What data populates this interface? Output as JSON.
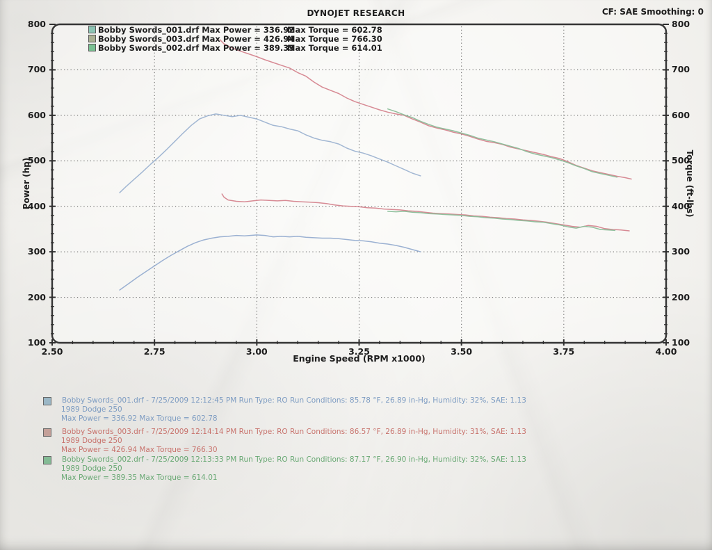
{
  "header": {
    "brand": "DYNOJET RESEARCH",
    "correction": "CF: SAE  Smoothing: 0"
  },
  "top_legend": {
    "rows": [
      {
        "file_power": "Bobby Swords_001.drf Max Power = 336.92",
        "max_torque": "Max Torque = 602.78",
        "chip_color": "#8cc4b4"
      },
      {
        "file_power": "Bobby Swords_003.drf Max Power = 426.94",
        "max_torque": "Max Torque = 766.30",
        "chip_color": "#aab092"
      },
      {
        "file_power": "Bobby Swords_002.drf Max Power = 389.35",
        "max_torque": "Max Torque = 614.01",
        "chip_color": "#79c091"
      }
    ]
  },
  "runs": [
    {
      "chip_color": "#9bb7c6",
      "text_color": "#7d9cc2",
      "line1": "Bobby Swords_001.drf - 7/25/2009 12:12:45 PM  Run Type: RO  Run Conditions: 85.78 °F, 26.89 in-Hg,  Humidity:  32%, SAE: 1.13",
      "line2": "1989 Dodge 250",
      "line3": "Max Power = 336.92  Max Torque = 602.78"
    },
    {
      "chip_color": "#c4a099",
      "text_color": "#c8736d",
      "line1": "Bobby Swords_003.drf - 7/25/2009 12:14:14 PM  Run Type: RO  Run Conditions: 86.57 °F, 26.89 in-Hg,  Humidity:  31%, SAE: 1.13",
      "line2": "1989 Dodge 250",
      "line3": "Max Power = 426.94  Max Torque = 766.30"
    },
    {
      "chip_color": "#84bb95",
      "text_color": "#68a873",
      "line1": "Bobby Swords_002.drf - 7/25/2009 12:13:33 PM  Run Type: RO  Run Conditions: 87.17 °F, 26.90 in-Hg,  Humidity:  32%, SAE: 1.13",
      "line2": "1989 Dodge 250",
      "line3": "Max Power = 389.35  Max Torque = 614.01"
    }
  ],
  "chart_data": {
    "type": "line",
    "title": "DYNOJET RESEARCH",
    "xlabel": "Engine Speed (RPM x1000)",
    "ylabel_left": "Power (hp)",
    "ylabel_right": "Torque (ft-lbs)",
    "xlim": [
      2.5,
      4.0
    ],
    "ylim": [
      100,
      800
    ],
    "x_tick_labels": [
      "2.50",
      "2.75",
      "3.00",
      "3.25",
      "3.50",
      "3.75",
      "4.00"
    ],
    "x_ticks": [
      2.5,
      2.75,
      3.0,
      3.25,
      3.5,
      3.75,
      4.0
    ],
    "y_tick_labels": [
      "100",
      "200",
      "300",
      "400",
      "500",
      "600",
      "700",
      "800"
    ],
    "y_ticks": [
      100,
      200,
      300,
      400,
      500,
      600,
      700,
      800
    ],
    "x_grid": [
      2.75,
      3.0,
      3.25,
      3.5,
      3.75
    ],
    "y_grid": [
      200,
      300,
      400,
      500,
      600,
      700
    ],
    "x_minor_step": 0.05,
    "y_minor_step": 20,
    "grid": "dotted",
    "legend_position": "top-left",
    "series": [
      {
        "name": "Bobby Swords_001.drf torque",
        "run": "001",
        "axis": "torque (ft-lbs, right)",
        "max_value": 602.78,
        "color": "#9db3d1",
        "points": [
          [
            2.665,
            430
          ],
          [
            2.68,
            443
          ],
          [
            2.7,
            459
          ],
          [
            2.72,
            475
          ],
          [
            2.74,
            492
          ],
          [
            2.76,
            508
          ],
          [
            2.78,
            525
          ],
          [
            2.8,
            543
          ],
          [
            2.82,
            561
          ],
          [
            2.84,
            578
          ],
          [
            2.86,
            592
          ],
          [
            2.88,
            599
          ],
          [
            2.9,
            603
          ],
          [
            2.92,
            600
          ],
          [
            2.94,
            597
          ],
          [
            2.96,
            600
          ],
          [
            2.98,
            596
          ],
          [
            3.0,
            592
          ],
          [
            3.02,
            585
          ],
          [
            3.04,
            578
          ],
          [
            3.06,
            575
          ],
          [
            3.08,
            570
          ],
          [
            3.1,
            566
          ],
          [
            3.12,
            557
          ],
          [
            3.14,
            550
          ],
          [
            3.16,
            545
          ],
          [
            3.18,
            542
          ],
          [
            3.2,
            537
          ],
          [
            3.22,
            528
          ],
          [
            3.24,
            521
          ],
          [
            3.26,
            517
          ],
          [
            3.28,
            511
          ],
          [
            3.3,
            504
          ],
          [
            3.32,
            497
          ],
          [
            3.34,
            489
          ],
          [
            3.36,
            481
          ],
          [
            3.38,
            473
          ],
          [
            3.4,
            467
          ]
        ]
      },
      {
        "name": "Bobby Swords_001.drf power",
        "run": "001",
        "axis": "power (hp, left)",
        "max_value": 336.92,
        "color": "#96add0",
        "points": [
          [
            2.665,
            216
          ],
          [
            2.69,
            232
          ],
          [
            2.71,
            245
          ],
          [
            2.73,
            257
          ],
          [
            2.75,
            269
          ],
          [
            2.77,
            281
          ],
          [
            2.79,
            292
          ],
          [
            2.81,
            302
          ],
          [
            2.83,
            312
          ],
          [
            2.85,
            320
          ],
          [
            2.87,
            326
          ],
          [
            2.89,
            330
          ],
          [
            2.91,
            333
          ],
          [
            2.93,
            334
          ],
          [
            2.95,
            336
          ],
          [
            2.97,
            335
          ],
          [
            3.0,
            337
          ],
          [
            3.02,
            336
          ],
          [
            3.04,
            333
          ],
          [
            3.06,
            334
          ],
          [
            3.08,
            333
          ],
          [
            3.1,
            334
          ],
          [
            3.12,
            332
          ],
          [
            3.14,
            331
          ],
          [
            3.16,
            330
          ],
          [
            3.18,
            330
          ],
          [
            3.2,
            329
          ],
          [
            3.22,
            327
          ],
          [
            3.24,
            325
          ],
          [
            3.26,
            324
          ],
          [
            3.28,
            322
          ],
          [
            3.3,
            319
          ],
          [
            3.32,
            317
          ],
          [
            3.34,
            314
          ],
          [
            3.36,
            310
          ],
          [
            3.38,
            305
          ],
          [
            3.4,
            300
          ]
        ]
      },
      {
        "name": "Bobby Swords_003.drf torque",
        "run": "003",
        "axis": "torque (ft-lbs, right)",
        "max_value": 766.3,
        "color": "#d5848e",
        "points": [
          [
            2.91,
            766
          ],
          [
            2.92,
            757
          ],
          [
            2.94,
            748
          ],
          [
            2.96,
            741
          ],
          [
            2.98,
            735
          ],
          [
            3.0,
            729
          ],
          [
            3.02,
            722
          ],
          [
            3.04,
            716
          ],
          [
            3.06,
            710
          ],
          [
            3.08,
            704
          ],
          [
            3.1,
            694
          ],
          [
            3.12,
            686
          ],
          [
            3.14,
            673
          ],
          [
            3.16,
            662
          ],
          [
            3.18,
            655
          ],
          [
            3.2,
            648
          ],
          [
            3.22,
            638
          ],
          [
            3.24,
            630
          ],
          [
            3.26,
            624
          ],
          [
            3.28,
            618
          ],
          [
            3.3,
            612
          ],
          [
            3.32,
            607
          ],
          [
            3.34,
            603
          ],
          [
            3.36,
            600
          ],
          [
            3.38,
            592
          ],
          [
            3.4,
            585
          ],
          [
            3.42,
            577
          ],
          [
            3.44,
            572
          ],
          [
            3.46,
            568
          ],
          [
            3.48,
            563
          ],
          [
            3.5,
            559
          ],
          [
            3.52,
            554
          ],
          [
            3.54,
            548
          ],
          [
            3.56,
            543
          ],
          [
            3.58,
            540
          ],
          [
            3.6,
            536
          ],
          [
            3.62,
            530
          ],
          [
            3.64,
            526
          ],
          [
            3.66,
            522
          ],
          [
            3.68,
            518
          ],
          [
            3.7,
            514
          ],
          [
            3.72,
            509
          ],
          [
            3.74,
            505
          ],
          [
            3.76,
            498
          ],
          [
            3.78,
            490
          ],
          [
            3.8,
            484
          ],
          [
            3.82,
            478
          ],
          [
            3.84,
            474
          ],
          [
            3.86,
            470
          ],
          [
            3.88,
            466
          ],
          [
            3.9,
            463
          ],
          [
            3.915,
            460
          ]
        ]
      },
      {
        "name": "Bobby Swords_003.drf power",
        "run": "003",
        "axis": "power (hp, left)",
        "max_value": 426.94,
        "color": "#d5848e",
        "points": [
          [
            2.915,
            427
          ],
          [
            2.92,
            420
          ],
          [
            2.93,
            414
          ],
          [
            2.95,
            411
          ],
          [
            2.97,
            410
          ],
          [
            2.99,
            412
          ],
          [
            3.01,
            414
          ],
          [
            3.03,
            413
          ],
          [
            3.05,
            412
          ],
          [
            3.07,
            413
          ],
          [
            3.09,
            411
          ],
          [
            3.11,
            410
          ],
          [
            3.13,
            409
          ],
          [
            3.15,
            408
          ],
          [
            3.17,
            406
          ],
          [
            3.19,
            403
          ],
          [
            3.21,
            401
          ],
          [
            3.23,
            400
          ],
          [
            3.25,
            399
          ],
          [
            3.27,
            397
          ],
          [
            3.29,
            396
          ],
          [
            3.31,
            394
          ],
          [
            3.33,
            393
          ],
          [
            3.35,
            392
          ],
          [
            3.37,
            390
          ],
          [
            3.39,
            389
          ],
          [
            3.41,
            387
          ],
          [
            3.43,
            385
          ],
          [
            3.45,
            384
          ],
          [
            3.47,
            383
          ],
          [
            3.49,
            382
          ],
          [
            3.51,
            381
          ],
          [
            3.53,
            379
          ],
          [
            3.55,
            378
          ],
          [
            3.57,
            376
          ],
          [
            3.59,
            375
          ],
          [
            3.61,
            373
          ],
          [
            3.63,
            372
          ],
          [
            3.65,
            370
          ],
          [
            3.67,
            369
          ],
          [
            3.69,
            367
          ],
          [
            3.71,
            365
          ],
          [
            3.73,
            362
          ],
          [
            3.75,
            359
          ],
          [
            3.77,
            356
          ],
          [
            3.79,
            354
          ],
          [
            3.81,
            358
          ],
          [
            3.83,
            356
          ],
          [
            3.85,
            351
          ],
          [
            3.87,
            349
          ],
          [
            3.89,
            348
          ],
          [
            3.91,
            346
          ]
        ]
      },
      {
        "name": "Bobby Swords_002.drf torque",
        "run": "002",
        "axis": "torque (ft-lbs, right)",
        "max_value": 614.01,
        "color": "#8abd98",
        "points": [
          [
            3.32,
            614
          ],
          [
            3.34,
            608
          ],
          [
            3.36,
            601
          ],
          [
            3.38,
            595
          ],
          [
            3.4,
            587
          ],
          [
            3.42,
            580
          ],
          [
            3.44,
            574
          ],
          [
            3.46,
            570
          ],
          [
            3.48,
            566
          ],
          [
            3.5,
            561
          ],
          [
            3.52,
            556
          ],
          [
            3.54,
            550
          ],
          [
            3.56,
            546
          ],
          [
            3.58,
            542
          ],
          [
            3.6,
            537
          ],
          [
            3.62,
            532
          ],
          [
            3.64,
            527
          ],
          [
            3.66,
            520
          ],
          [
            3.68,
            515
          ],
          [
            3.7,
            511
          ],
          [
            3.72,
            507
          ],
          [
            3.74,
            502
          ],
          [
            3.76,
            496
          ],
          [
            3.78,
            489
          ],
          [
            3.8,
            483
          ],
          [
            3.82,
            476
          ],
          [
            3.84,
            472
          ],
          [
            3.86,
            468
          ],
          [
            3.88,
            464
          ]
        ]
      },
      {
        "name": "Bobby Swords_002.drf power",
        "run": "002",
        "axis": "power (hp, left)",
        "max_value": 389.35,
        "color": "#8abd98",
        "points": [
          [
            3.32,
            389
          ],
          [
            3.34,
            388
          ],
          [
            3.36,
            389
          ],
          [
            3.38,
            387
          ],
          [
            3.4,
            386
          ],
          [
            3.42,
            384
          ],
          [
            3.44,
            383
          ],
          [
            3.46,
            382
          ],
          [
            3.48,
            381
          ],
          [
            3.5,
            380
          ],
          [
            3.52,
            378
          ],
          [
            3.54,
            377
          ],
          [
            3.56,
            375
          ],
          [
            3.58,
            374
          ],
          [
            3.6,
            372
          ],
          [
            3.62,
            371
          ],
          [
            3.64,
            369
          ],
          [
            3.66,
            368
          ],
          [
            3.68,
            366
          ],
          [
            3.7,
            365
          ],
          [
            3.72,
            362
          ],
          [
            3.74,
            359
          ],
          [
            3.76,
            355
          ],
          [
            3.78,
            352
          ],
          [
            3.8,
            356
          ],
          [
            3.82,
            354
          ],
          [
            3.84,
            349
          ],
          [
            3.86,
            348
          ],
          [
            3.875,
            347
          ]
        ]
      }
    ]
  }
}
